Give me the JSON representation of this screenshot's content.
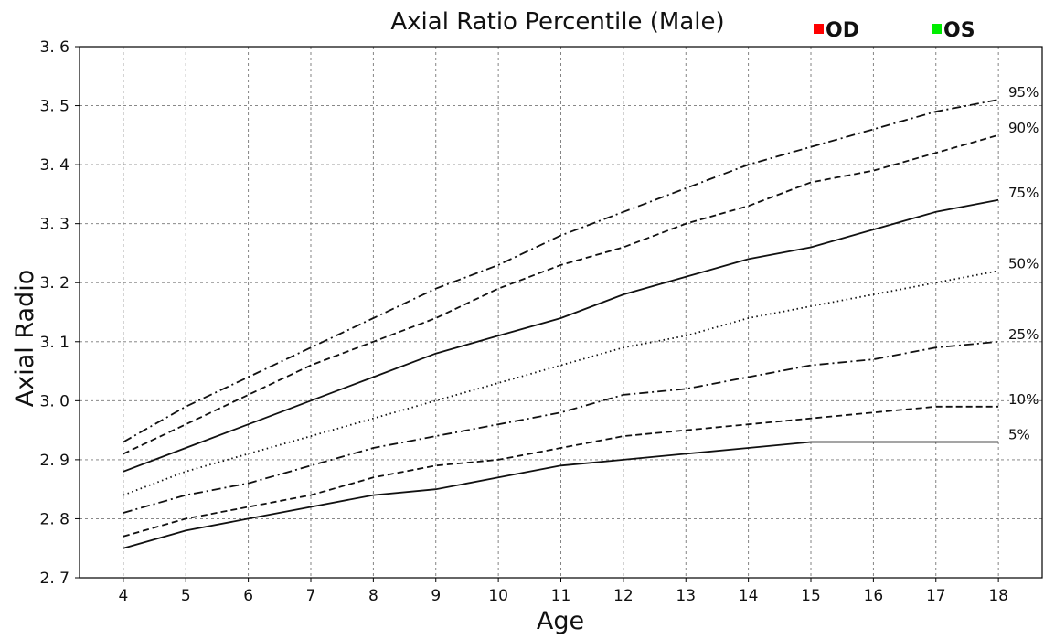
{
  "chart_data": {
    "type": "line",
    "title": "Axial Ratio Percentile (Male)",
    "xlabel": "Age",
    "ylabel": "Axial Radio",
    "xlim": [
      3.3,
      18.7
    ],
    "ylim": [
      2.7,
      3.6
    ],
    "x": [
      4,
      5,
      6,
      7,
      8,
      9,
      10,
      11,
      12,
      13,
      14,
      15,
      16,
      17,
      18
    ],
    "xticks": [
      "4",
      "5",
      "6",
      "7",
      "8",
      "9",
      "10",
      "11",
      "12",
      "13",
      "14",
      "15",
      "16",
      "17",
      "18"
    ],
    "yticks": [
      "2. 7",
      "2. 8",
      "2. 9",
      "3. 0",
      "3. 1",
      "3. 2",
      "3. 3",
      "3. 4",
      "3. 5",
      "3. 6"
    ],
    "grid": true,
    "legend": [
      {
        "name": "OD",
        "color": "#ff0000"
      },
      {
        "name": "OS",
        "color": "#00ee00"
      }
    ],
    "series": [
      {
        "name": "95%",
        "style": "dashdot",
        "values": [
          2.93,
          2.99,
          3.04,
          3.09,
          3.14,
          3.19,
          3.23,
          3.28,
          3.32,
          3.36,
          3.4,
          3.43,
          3.46,
          3.49,
          3.51
        ]
      },
      {
        "name": "90%",
        "style": "dashed",
        "values": [
          2.91,
          2.96,
          3.01,
          3.06,
          3.1,
          3.14,
          3.19,
          3.23,
          3.26,
          3.3,
          3.33,
          3.37,
          3.39,
          3.42,
          3.45
        ]
      },
      {
        "name": "75%",
        "style": "solid",
        "values": [
          2.88,
          2.92,
          2.96,
          3.0,
          3.04,
          3.08,
          3.11,
          3.14,
          3.18,
          3.21,
          3.24,
          3.26,
          3.29,
          3.32,
          3.34
        ]
      },
      {
        "name": "50%",
        "style": "dotted",
        "values": [
          2.84,
          2.88,
          2.91,
          2.94,
          2.97,
          3.0,
          3.03,
          3.06,
          3.09,
          3.11,
          3.14,
          3.16,
          3.18,
          3.2,
          3.22
        ]
      },
      {
        "name": "25%",
        "style": "dashdot",
        "values": [
          2.81,
          2.84,
          2.86,
          2.89,
          2.92,
          2.94,
          2.96,
          2.98,
          3.01,
          3.02,
          3.04,
          3.06,
          3.07,
          3.09,
          3.1
        ]
      },
      {
        "name": "10%",
        "style": "dashed",
        "values": [
          2.77,
          2.8,
          2.82,
          2.84,
          2.87,
          2.89,
          2.9,
          2.92,
          2.94,
          2.95,
          2.96,
          2.97,
          2.98,
          2.99,
          2.99
        ]
      },
      {
        "name": "5%",
        "style": "solid",
        "values": [
          2.75,
          2.78,
          2.8,
          2.82,
          2.84,
          2.85,
          2.87,
          2.89,
          2.9,
          2.91,
          2.92,
          2.93,
          2.93,
          2.93,
          2.93
        ]
      }
    ]
  }
}
